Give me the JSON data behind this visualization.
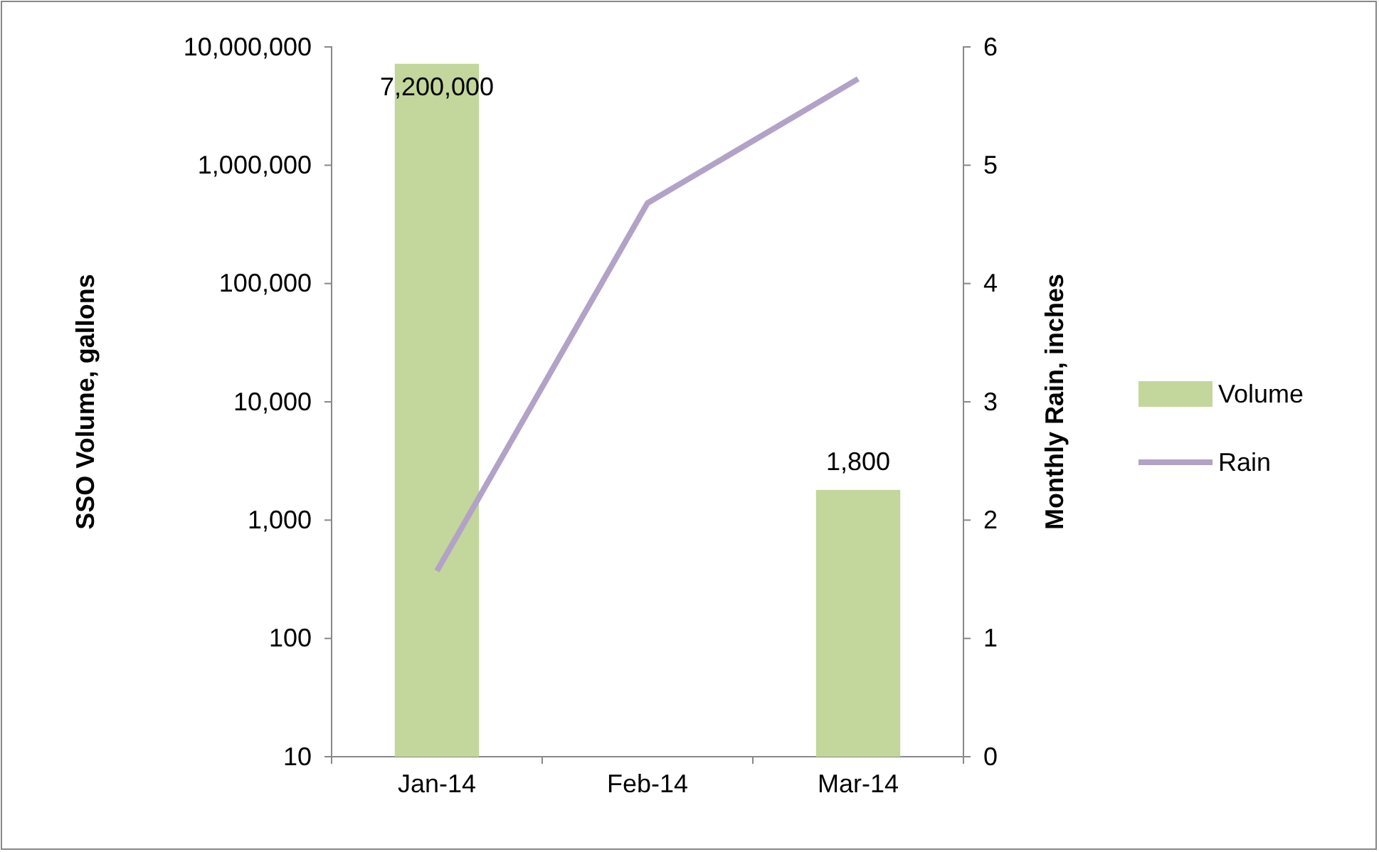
{
  "chart_data": {
    "type": "bar",
    "xlabel": null,
    "ylabel": "SSO Volume, gallons",
    "y2label": "Monthly Rain, inches",
    "categories": [
      "Jan-14",
      "Feb-14",
      "Mar-14"
    ],
    "series": [
      {
        "name": "Volume",
        "color": "#c3d69b",
        "values": [
          7200000,
          null,
          1800
        ],
        "value_labels": [
          "7,200,000",
          null,
          "1,800"
        ]
      },
      {
        "name": "Rain",
        "type": "line",
        "axis": "y2",
        "color": "#b3a2c7",
        "values": [
          1.57,
          4.68,
          5.73
        ],
        "marker": "none"
      }
    ],
    "log": "y",
    "ylim": [
      10,
      10000000
    ],
    "yticks": [
      {
        "value": 10,
        "label": "10"
      },
      {
        "value": 100,
        "label": "100"
      },
      {
        "value": 1000,
        "label": "1,000"
      },
      {
        "value": 10000,
        "label": "10,000"
      },
      {
        "value": 100000,
        "label": "100,000"
      },
      {
        "value": 1000000,
        "label": "1,000,000"
      },
      {
        "value": 10000000,
        "label": "10,000,000"
      }
    ],
    "y2lim": [
      0,
      6
    ],
    "y2ticks": [
      0,
      1,
      2,
      3,
      4,
      5,
      6
    ],
    "grid": false,
    "legend": "right"
  }
}
